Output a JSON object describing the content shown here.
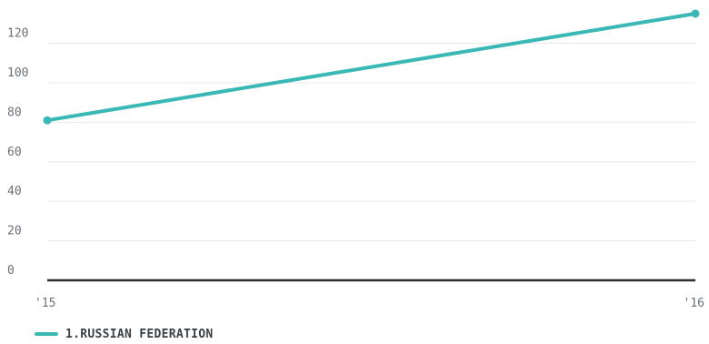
{
  "chart_data": {
    "type": "line",
    "x": [
      "'15",
      "'16"
    ],
    "y_ticks": [
      0,
      20,
      40,
      60,
      80,
      100,
      120
    ],
    "ylim": [
      0,
      135
    ],
    "grid": true,
    "legend_position": "bottom-left",
    "series": [
      {
        "name": "1.RUSSIAN FEDERATION",
        "values": [
          81,
          135
        ],
        "color": "#3ab8b5"
      }
    ]
  },
  "colors": {
    "series": "#3ab8b5",
    "grid": "#e9e9e9",
    "baseline": "#2b2f33",
    "tick_text": "#6b6f75"
  }
}
